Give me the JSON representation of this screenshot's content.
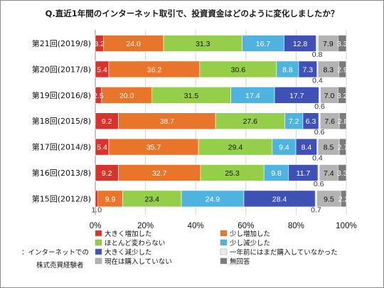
{
  "chart_data": {
    "type": "bar",
    "orientation": "horizontal",
    "stacked": true,
    "title": "Q.直近1年間のインターネット取引で、投資資金はどのように変化しましたか？",
    "categories": [
      "第21回(2019/8)",
      "第20回(2017/8)",
      "第19回(2016/8)",
      "第18回(2015/8)",
      "第17回(2014/8)",
      "第16回(2013/8)",
      "第15回(2012/8)"
    ],
    "series": [
      {
        "name": "大きく増加した",
        "color": "#d9342b",
        "values": [
          3.2,
          5.4,
          2.5,
          9.2,
          5.4,
          9.2,
          1.0
        ]
      },
      {
        "name": "少し増加した",
        "color": "#e8752a",
        "values": [
          24.0,
          36.2,
          20.0,
          38.7,
          35.7,
          32.7,
          9.9
        ]
      },
      {
        "name": "ほとんど変わらない",
        "color": "#95cf4a",
        "values": [
          31.3,
          30.6,
          31.5,
          27.6,
          29.4,
          25.3,
          23.4
        ]
      },
      {
        "name": "少し減少した",
        "color": "#4fb3df",
        "values": [
          16.7,
          8.8,
          17.4,
          7.2,
          9.4,
          9.8,
          24.9
        ]
      },
      {
        "name": "大きく減少した",
        "color": "#3f51b5",
        "values": [
          12.8,
          7.3,
          17.7,
          6.3,
          8.4,
          11.7,
          28.4
        ]
      },
      {
        "name": "一年前にはまだ購入していなかった",
        "color": "#ececec",
        "values": [
          0.8,
          0.4,
          0.6,
          0.6,
          0.4,
          0.6,
          0.7
        ]
      },
      {
        "name": "現在は購入していない",
        "color": "#b3b3b3",
        "values": [
          7.9,
          8.3,
          7.0,
          7.6,
          8.5,
          7.4,
          9.5
        ]
      },
      {
        "name": "無回答",
        "color": "#7a7a7a",
        "values": [
          3.3,
          2.9,
          3.2,
          2.8,
          2.7,
          3.3,
          2.2
        ]
      }
    ],
    "xlim": [
      0,
      100
    ],
    "xticks": [
      "0%",
      "20%",
      "40%",
      "60%",
      "80%",
      "100%"
    ],
    "grid": true,
    "legend": "bottom",
    "note": "：インターネットでの株式売買経験者"
  }
}
